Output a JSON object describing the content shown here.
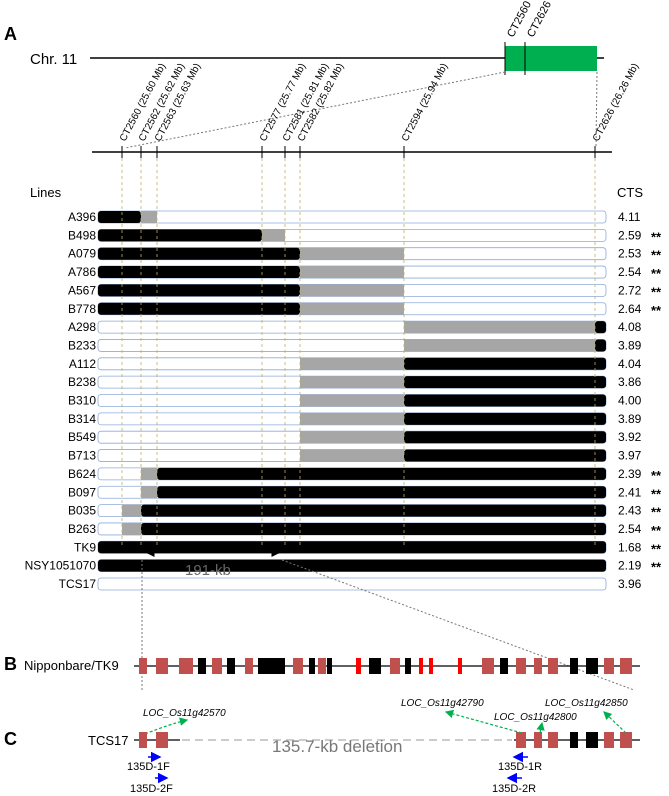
{
  "panel_a": {
    "label": "A",
    "chr_label": "Chr. 11",
    "top_markers": [
      "CT2560",
      "CT2626"
    ],
    "markers": [
      {
        "name": "CT2560 (25.60 Mb)",
        "mb": 25.6
      },
      {
        "name": "CT2562 (25.62 Mb)",
        "mb": 25.62
      },
      {
        "name": "CT2563 (25.63 Mb)",
        "mb": 25.63
      },
      {
        "name": "CT2577 (25.77 Mb)",
        "mb": 25.77
      },
      {
        "name": "CT2581 (25.81 Mb)",
        "mb": 25.81
      },
      {
        "name": "CT2582 (25.82 Mb)",
        "mb": 25.82
      },
      {
        "name": "CT2594 (25.94 Mb)",
        "mb": 25.94
      },
      {
        "name": "CT2626 (26.26 Mb)",
        "mb": 26.26
      }
    ],
    "lines_header": "Lines",
    "cts_header": "CTS",
    "rows": [
      {
        "line": "A396",
        "cts": "4.11",
        "sig": ""
      },
      {
        "line": "B498",
        "cts": "2.59",
        "sig": "**"
      },
      {
        "line": "A079",
        "cts": "2.53",
        "sig": "**"
      },
      {
        "line": "A786",
        "cts": "2.54",
        "sig": "**"
      },
      {
        "line": "A567",
        "cts": "2.72",
        "sig": "**"
      },
      {
        "line": "B778",
        "cts": "2.64",
        "sig": "**"
      },
      {
        "line": "A298",
        "cts": "4.08",
        "sig": ""
      },
      {
        "line": "B233",
        "cts": "3.89",
        "sig": ""
      },
      {
        "line": "A112",
        "cts": "4.04",
        "sig": ""
      },
      {
        "line": "B238",
        "cts": "3.86",
        "sig": ""
      },
      {
        "line": "B310",
        "cts": "4.00",
        "sig": ""
      },
      {
        "line": "B314",
        "cts": "3.89",
        "sig": ""
      },
      {
        "line": "B549",
        "cts": "3.92",
        "sig": ""
      },
      {
        "line": "B713",
        "cts": "3.97",
        "sig": ""
      },
      {
        "line": "B624",
        "cts": "2.39",
        "sig": "**"
      },
      {
        "line": "B097",
        "cts": "2.41",
        "sig": "**"
      },
      {
        "line": "B035",
        "cts": "2.43",
        "sig": "**"
      },
      {
        "line": "B263",
        "cts": "2.54",
        "sig": "**"
      },
      {
        "line": "TK9",
        "cts": "1.68",
        "sig": "**"
      },
      {
        "line": "NSY1051070",
        "cts": "2.19",
        "sig": "**"
      },
      {
        "line": "TCS17",
        "cts": "3.96",
        "sig": ""
      }
    ],
    "interval_label": "191-kb"
  },
  "panel_b": {
    "label": "B",
    "track_label": "Nipponbare/TK9"
  },
  "panel_c": {
    "label": "C",
    "track_label": "TCS17",
    "deletion_label": "135.7-kb deletion",
    "genes": [
      "LOC_Os11g42570",
      "LOC_Os11g42790",
      "LOC_Os11g42800",
      "LOC_Os11g42850"
    ],
    "primers": [
      "135D-1F",
      "135D-2F",
      "135D-1R",
      "135D-2R"
    ]
  },
  "colors": {
    "introgression": "#00b050",
    "donor": "#000000",
    "recombination": "#a6a6a6",
    "gene_red": "#c0504d",
    "gene_black": "#000000",
    "bright_red": "#ff0000",
    "arrow_green": "#00b050",
    "primer_blue": "#0000ff"
  }
}
